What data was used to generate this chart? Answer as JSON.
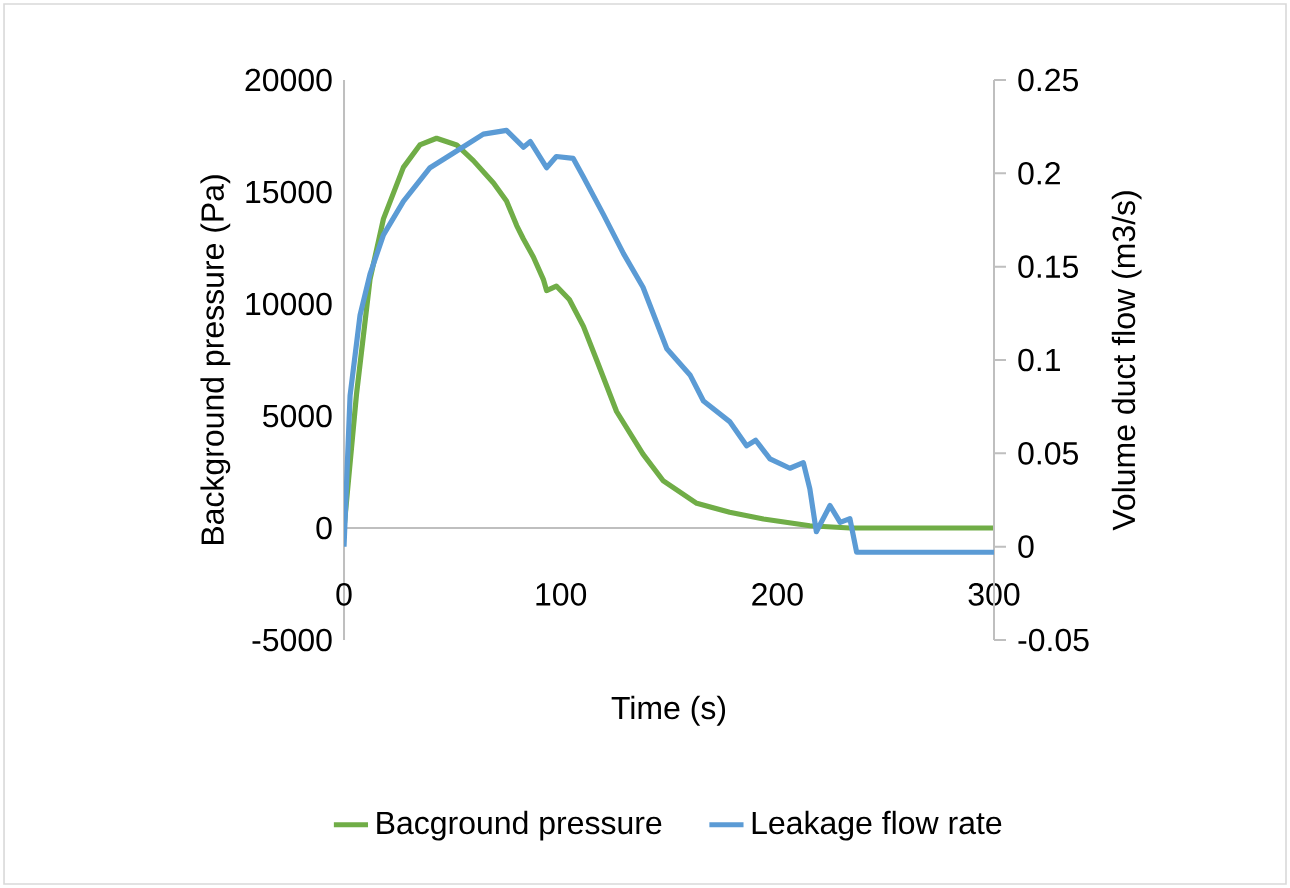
{
  "chart_data": {
    "type": "line",
    "xlabel": "Time (s)",
    "ylabel": "Background pressure (Pa)",
    "y2label": "Volume duct flow (m3/s)",
    "xlim": [
      0,
      300
    ],
    "xticks": [
      0,
      100,
      200,
      300
    ],
    "ylim": [
      -5000,
      20000
    ],
    "yticks": [
      -5000,
      0,
      5000,
      10000,
      15000,
      20000
    ],
    "y2lim": [
      -0.05,
      0.25
    ],
    "y2ticks": [
      -0.05,
      0,
      0.05,
      0.1,
      0.15,
      0.2,
      0.25
    ],
    "legend": "bottom",
    "marker": "none",
    "line_style": "solid",
    "series": [
      {
        "name": "Bacground pressure",
        "color": "#70ad47",
        "x": [
          0,
          5.8,
          12,
          18.2,
          27.4,
          35,
          42.7,
          52,
          59.7,
          69,
          75,
          79.7,
          82.8,
          87.4,
          92,
          93.5,
          98,
          104,
          110.5,
          116.6,
          125.8,
          138,
          147.4,
          162.8,
          178,
          193.6,
          215,
          233.5,
          300
        ],
        "values": [
          0,
          6000,
          11100,
          13800,
          16100,
          17100,
          17400,
          17100,
          16400,
          15400,
          14600,
          13500,
          12900,
          12100,
          11100,
          10600,
          10800,
          10200,
          9000,
          7500,
          5200,
          3300,
          2100,
          1100,
          700,
          400,
          100,
          0,
          0
        ]
      },
      {
        "name": "Leakage flow rate",
        "color": "#5b9bd5",
        "axis": "y2",
        "x": [
          0,
          2.8,
          7.4,
          12,
          18.2,
          27.4,
          39.7,
          52,
          64.3,
          75,
          82.8,
          86,
          93.5,
          98,
          105.8,
          110.5,
          119.7,
          129,
          138,
          149,
          159.7,
          165.9,
          178,
          185.8,
          190,
          196.6,
          205.8,
          212,
          215,
          218,
          224.3,
          229,
          233.5,
          236.6,
          300
        ],
        "values": [
          0,
          0.081,
          0.124,
          0.146,
          0.167,
          0.185,
          0.203,
          0.212,
          0.221,
          0.223,
          0.214,
          0.217,
          0.203,
          0.209,
          0.208,
          0.198,
          0.178,
          0.157,
          0.139,
          0.106,
          0.092,
          0.078,
          0.067,
          0.054,
          0.057,
          0.047,
          0.042,
          0.045,
          0.031,
          0.008,
          0.022,
          0.013,
          0.015,
          -0.003,
          -0.003
        ]
      }
    ]
  }
}
